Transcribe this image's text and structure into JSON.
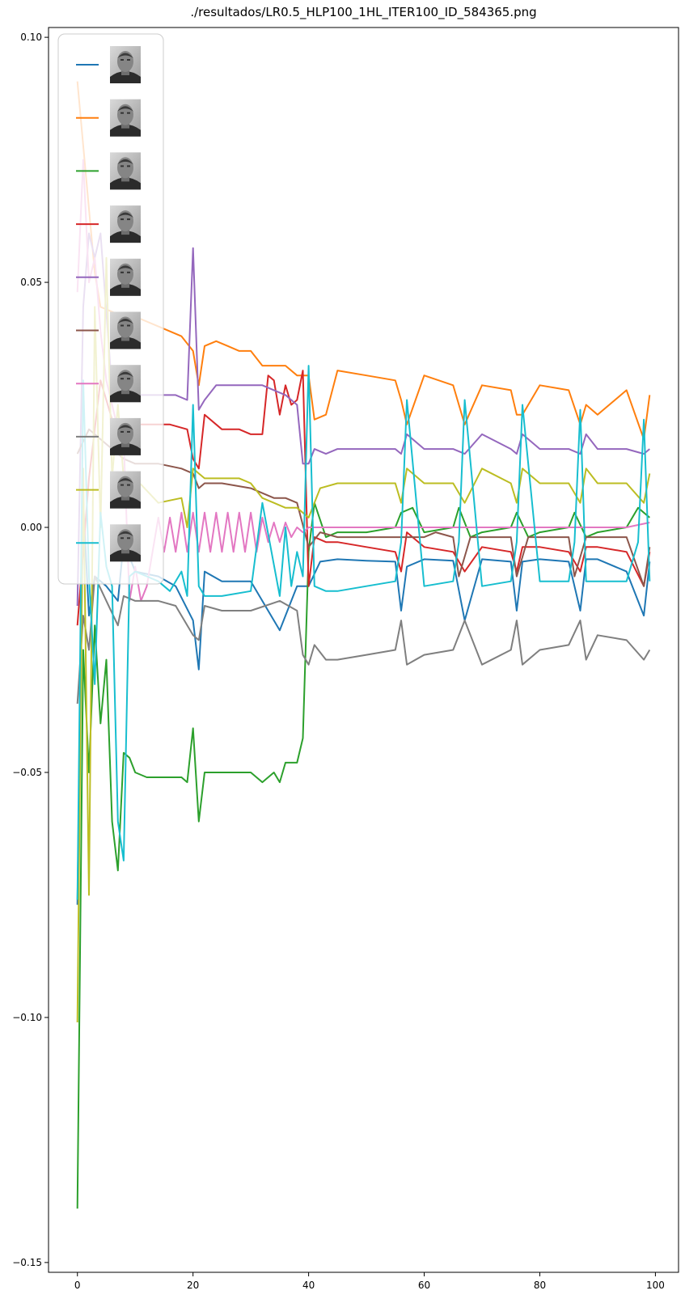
{
  "chart_data": {
    "type": "line",
    "title": "./resultados/LR0.5_HLP100_1HL_ITER100_ID_584365.png",
    "xlabel": "",
    "ylabel": "",
    "xlim": [
      -5,
      104
    ],
    "ylim": [
      -0.152,
      0.102
    ],
    "xticks": [
      0,
      20,
      40,
      60,
      80,
      100
    ],
    "yticks": [
      0.1,
      0.05,
      0.0,
      -0.05,
      -0.1,
      -0.15
    ],
    "ytick_labels": [
      "0.10",
      "0.05",
      "0.00",
      "−0.05",
      "−0.10",
      "−0.15"
    ],
    "grid": false,
    "legend": {
      "location": "upper-left",
      "entries": [
        {
          "color": "#1f77b4",
          "marker": "face-thumbnail"
        },
        {
          "color": "#ff7f0e",
          "marker": "face-thumbnail"
        },
        {
          "color": "#2ca02c",
          "marker": "face-thumbnail"
        },
        {
          "color": "#d62728",
          "marker": "face-thumbnail"
        },
        {
          "color": "#9467bd",
          "marker": "face-thumbnail"
        },
        {
          "color": "#8c564b",
          "marker": "face-thumbnail"
        },
        {
          "color": "#e377c2",
          "marker": "face-thumbnail"
        },
        {
          "color": "#7f7f7f",
          "marker": "face-thumbnail"
        },
        {
          "color": "#bcbd22",
          "marker": "face-thumbnail"
        },
        {
          "color": "#17becf",
          "marker": "face-thumbnail"
        }
      ]
    },
    "series": [
      {
        "color": "#1f77b4",
        "x": [
          0,
          1,
          2,
          3,
          5,
          7,
          8,
          10,
          14,
          17,
          20,
          21,
          22,
          25,
          30,
          35,
          38,
          40,
          42,
          45,
          50,
          55,
          56,
          57,
          60,
          65,
          67,
          70,
          75,
          76,
          77,
          80,
          85,
          87,
          88,
          90,
          95,
          98,
          99
        ],
        "y": [
          -0.077,
          0.005,
          -0.018,
          -0.01,
          -0.012,
          -0.015,
          -0.003,
          -0.009,
          -0.01,
          -0.012,
          -0.019,
          -0.029,
          -0.009,
          -0.011,
          -0.011,
          -0.021,
          -0.012,
          -0.012,
          -0.007,
          -0.0065,
          -0.0068,
          -0.007,
          -0.017,
          -0.008,
          -0.0065,
          -0.0068,
          -0.019,
          -0.0065,
          -0.007,
          -0.017,
          -0.007,
          -0.0065,
          -0.007,
          -0.017,
          -0.0065,
          -0.0065,
          -0.009,
          -0.018,
          -0.007
        ]
      },
      {
        "color": "#ff7f0e",
        "x": [
          0,
          2,
          3,
          4,
          6,
          8,
          10,
          14,
          18,
          20,
          21,
          22,
          24,
          26,
          28,
          30,
          32,
          34,
          36,
          38,
          40,
          41,
          43,
          45,
          50,
          55,
          56,
          57,
          60,
          65,
          67,
          70,
          75,
          76,
          77,
          80,
          85,
          87,
          88,
          90,
          95,
          98,
          99
        ],
        "y": [
          0.091,
          0.065,
          0.052,
          0.045,
          0.044,
          0.043,
          0.043,
          0.041,
          0.039,
          0.036,
          0.029,
          0.037,
          0.038,
          0.037,
          0.036,
          0.036,
          0.033,
          0.033,
          0.033,
          0.031,
          0.031,
          0.022,
          0.023,
          0.032,
          0.031,
          0.03,
          0.026,
          0.021,
          0.031,
          0.029,
          0.021,
          0.029,
          0.028,
          0.023,
          0.023,
          0.029,
          0.028,
          0.021,
          0.025,
          0.023,
          0.028,
          0.018,
          0.027
        ]
      },
      {
        "color": "#2ca02c",
        "x": [
          0,
          1,
          2,
          3,
          4,
          5,
          6,
          7,
          8,
          9,
          10,
          12,
          15,
          18,
          19,
          20,
          21,
          22,
          25,
          30,
          32,
          34,
          35,
          36,
          38,
          39,
          40,
          41,
          43,
          45,
          50,
          55,
          56,
          58,
          60,
          65,
          66,
          68,
          70,
          75,
          76,
          78,
          80,
          85,
          86,
          88,
          90,
          95,
          97,
          99
        ],
        "y": [
          -0.139,
          -0.025,
          -0.05,
          -0.02,
          -0.04,
          -0.027,
          -0.06,
          -0.07,
          -0.046,
          -0.047,
          -0.05,
          -0.051,
          -0.051,
          -0.051,
          -0.052,
          -0.041,
          -0.06,
          -0.05,
          -0.05,
          -0.05,
          -0.052,
          -0.05,
          -0.052,
          -0.048,
          -0.048,
          -0.043,
          -0.005,
          0.005,
          -0.002,
          -0.001,
          -0.001,
          0.0,
          0.003,
          0.004,
          -0.001,
          0.0,
          0.004,
          -0.002,
          -0.001,
          0.0,
          0.003,
          -0.002,
          -0.001,
          0.0,
          0.003,
          -0.002,
          -0.001,
          0.0,
          0.004,
          0.002
        ]
      },
      {
        "color": "#d62728",
        "x": [
          0,
          2,
          4,
          6,
          8,
          10,
          12,
          16,
          19,
          20,
          21,
          22,
          25,
          28,
          30,
          32,
          33,
          34,
          35,
          36,
          37,
          38,
          39,
          40,
          41,
          43,
          45,
          50,
          55,
          56,
          57,
          60,
          65,
          67,
          70,
          75,
          76,
          77,
          80,
          85,
          87,
          88,
          90,
          95,
          98,
          99
        ],
        "y": [
          -0.02,
          0.01,
          0.03,
          0.022,
          0.021,
          0.021,
          0.021,
          0.021,
          0.02,
          0.014,
          0.012,
          0.023,
          0.02,
          0.02,
          0.019,
          0.019,
          0.031,
          0.03,
          0.023,
          0.029,
          0.025,
          0.026,
          0.032,
          -0.012,
          -0.002,
          -0.003,
          -0.003,
          -0.004,
          -0.005,
          -0.009,
          -0.001,
          -0.004,
          -0.005,
          -0.009,
          -0.004,
          -0.005,
          -0.009,
          -0.004,
          -0.004,
          -0.005,
          -0.009,
          -0.004,
          -0.004,
          -0.005,
          -0.012,
          -0.005
        ]
      },
      {
        "color": "#9467bd",
        "x": [
          0,
          1,
          2,
          3,
          4,
          6,
          8,
          10,
          14,
          17,
          19,
          20,
          21,
          22,
          24,
          26,
          28,
          30,
          32,
          34,
          36,
          38,
          39,
          40,
          41,
          43,
          45,
          50,
          55,
          56,
          57,
          60,
          65,
          67,
          70,
          75,
          76,
          77,
          80,
          85,
          87,
          88,
          90,
          95,
          98,
          99
        ],
        "y": [
          -0.016,
          0.045,
          0.06,
          0.055,
          0.06,
          0.028,
          0.027,
          0.027,
          0.027,
          0.027,
          0.026,
          0.057,
          0.024,
          0.026,
          0.029,
          0.029,
          0.029,
          0.029,
          0.029,
          0.028,
          0.027,
          0.025,
          0.013,
          0.013,
          0.016,
          0.015,
          0.016,
          0.016,
          0.016,
          0.015,
          0.019,
          0.016,
          0.016,
          0.015,
          0.019,
          0.016,
          0.015,
          0.019,
          0.016,
          0.016,
          0.015,
          0.019,
          0.016,
          0.016,
          0.015,
          0.016
        ]
      },
      {
        "color": "#8c564b",
        "x": [
          0,
          2,
          4,
          6,
          8,
          10,
          14,
          18,
          20,
          21,
          22,
          25,
          30,
          34,
          36,
          38,
          40,
          42,
          45,
          50,
          55,
          60,
          62,
          65,
          66,
          68,
          70,
          75,
          76,
          78,
          80,
          85,
          86,
          88,
          90,
          95,
          98,
          99
        ],
        "y": [
          0.015,
          0.02,
          0.018,
          0.016,
          0.014,
          0.013,
          0.013,
          0.012,
          0.011,
          0.008,
          0.009,
          0.009,
          0.008,
          0.006,
          0.006,
          0.005,
          -0.004,
          -0.001,
          -0.002,
          -0.002,
          -0.002,
          -0.002,
          -0.001,
          -0.002,
          -0.01,
          -0.002,
          -0.002,
          -0.002,
          -0.01,
          -0.002,
          -0.002,
          -0.002,
          -0.01,
          -0.002,
          -0.002,
          -0.002,
          -0.012,
          -0.004
        ]
      },
      {
        "color": "#e377c2",
        "x": [
          0,
          1,
          2,
          3,
          4,
          5,
          6,
          7,
          8,
          9,
          10,
          11,
          12,
          13,
          14,
          15,
          16,
          17,
          18,
          19,
          20,
          21,
          22,
          23,
          24,
          25,
          26,
          27,
          28,
          29,
          30,
          31,
          32,
          33,
          34,
          35,
          36,
          37,
          38,
          39,
          40,
          42,
          45,
          50,
          55,
          60,
          65,
          70,
          75,
          80,
          85,
          90,
          95,
          99
        ],
        "y": [
          0.048,
          0.075,
          0.05,
          0.055,
          0.04,
          0.03,
          0.025,
          0.02,
          0.018,
          -0.015,
          -0.008,
          -0.015,
          -0.012,
          -0.005,
          0.002,
          -0.005,
          0.002,
          -0.005,
          0.003,
          -0.005,
          0.003,
          -0.005,
          0.003,
          -0.005,
          0.003,
          -0.005,
          0.003,
          -0.005,
          0.003,
          -0.005,
          0.003,
          -0.005,
          0.002,
          -0.003,
          0.001,
          -0.003,
          0.001,
          -0.002,
          0.0,
          -0.001,
          0.0,
          0.0,
          0.0,
          0.0,
          0.0,
          0.0,
          0.0,
          0.0,
          0.0,
          0.0,
          0.0,
          0.0,
          0.0,
          0.001
        ]
      },
      {
        "color": "#7f7f7f",
        "x": [
          0,
          1,
          2,
          3,
          5,
          7,
          8,
          10,
          14,
          17,
          20,
          21,
          22,
          25,
          30,
          35,
          38,
          39,
          40,
          41,
          43,
          45,
          50,
          55,
          56,
          57,
          60,
          65,
          67,
          70,
          75,
          76,
          77,
          80,
          85,
          87,
          88,
          90,
          95,
          98,
          99
        ],
        "y": [
          -0.036,
          -0.018,
          -0.025,
          -0.01,
          -0.015,
          -0.02,
          -0.014,
          -0.015,
          -0.015,
          -0.016,
          -0.022,
          -0.023,
          -0.016,
          -0.017,
          -0.017,
          -0.015,
          -0.017,
          -0.026,
          -0.028,
          -0.024,
          -0.027,
          -0.027,
          -0.026,
          -0.025,
          -0.019,
          -0.028,
          -0.026,
          -0.025,
          -0.019,
          -0.028,
          -0.025,
          -0.019,
          -0.028,
          -0.025,
          -0.024,
          -0.019,
          -0.027,
          -0.022,
          -0.023,
          -0.027,
          -0.025
        ]
      },
      {
        "color": "#bcbd22",
        "x": [
          0,
          1,
          2,
          3,
          4,
          5,
          6,
          7,
          8,
          10,
          14,
          18,
          19,
          20,
          21,
          22,
          24,
          26,
          28,
          30,
          32,
          34,
          36,
          38,
          40,
          42,
          45,
          50,
          55,
          56,
          57,
          60,
          65,
          67,
          70,
          75,
          76,
          77,
          80,
          85,
          87,
          88,
          90,
          95,
          98,
          99
        ],
        "y": [
          -0.101,
          0.012,
          -0.075,
          0.045,
          0.0,
          0.055,
          0.01,
          0.025,
          0.01,
          0.01,
          0.005,
          0.006,
          0.0,
          0.012,
          0.011,
          0.01,
          0.01,
          0.01,
          0.01,
          0.009,
          0.006,
          0.005,
          0.004,
          0.004,
          0.002,
          0.008,
          0.009,
          0.009,
          0.009,
          0.005,
          0.012,
          0.009,
          0.009,
          0.005,
          0.012,
          0.009,
          0.005,
          0.012,
          0.009,
          0.009,
          0.005,
          0.012,
          0.009,
          0.009,
          0.005,
          0.011
        ]
      },
      {
        "color": "#17becf",
        "x": [
          0,
          1,
          2,
          3,
          4,
          5,
          6,
          7,
          8,
          9,
          10,
          12,
          14,
          16,
          18,
          19,
          20,
          21,
          22,
          25,
          30,
          32,
          35,
          36,
          37,
          38,
          39,
          40,
          41,
          43,
          45,
          50,
          55,
          56,
          57,
          60,
          65,
          66,
          67,
          70,
          75,
          76,
          77,
          80,
          85,
          86,
          87,
          88,
          90,
          95,
          97,
          98,
          99
        ],
        "y": [
          -0.076,
          0.03,
          -0.01,
          -0.032,
          0.003,
          -0.008,
          -0.012,
          -0.06,
          -0.068,
          -0.01,
          -0.009,
          -0.01,
          -0.011,
          -0.013,
          -0.009,
          -0.014,
          0.025,
          -0.012,
          -0.014,
          -0.014,
          -0.013,
          0.005,
          -0.014,
          0.0,
          -0.012,
          -0.005,
          -0.01,
          0.033,
          -0.012,
          -0.013,
          -0.013,
          -0.012,
          -0.011,
          -0.003,
          0.026,
          -0.012,
          -0.011,
          -0.003,
          0.026,
          -0.012,
          -0.011,
          -0.003,
          0.025,
          -0.011,
          -0.011,
          -0.003,
          0.024,
          -0.011,
          -0.011,
          -0.011,
          -0.003,
          0.022,
          -0.011
        ]
      }
    ]
  }
}
